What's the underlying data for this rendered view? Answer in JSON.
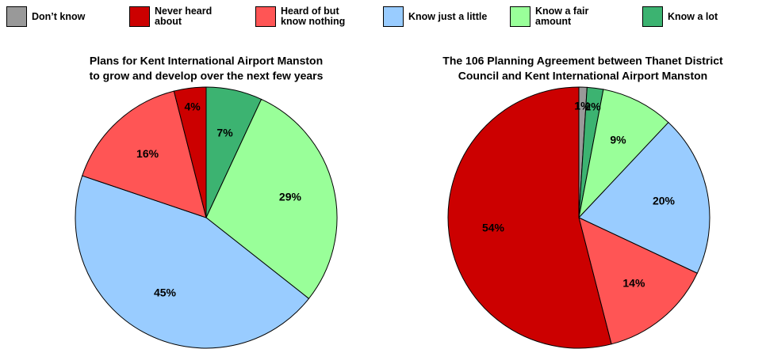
{
  "legend": [
    {
      "name": "Don’t know",
      "color": "#999999"
    },
    {
      "name": "Never heard about",
      "color": "#cc0000"
    },
    {
      "name": "Heard of but know nothing",
      "color": "#ff5555"
    },
    {
      "name": "Know just a little",
      "color": "#99ccff"
    },
    {
      "name": "Know a fair amount",
      "color": "#99ff99"
    },
    {
      "name": "Know a lot",
      "color": "#3cb371"
    }
  ],
  "chart_data": [
    {
      "type": "pie",
      "title": [
        "Plans for Kent International Airport Manston",
        "to grow and develop over the next few years"
      ],
      "categories": [
        "Know a lot",
        "Know a fair amount",
        "Know just a little",
        "Heard of but know nothing",
        "Never heard about"
      ],
      "values": [
        7,
        29,
        45,
        16,
        4
      ],
      "value_labels": [
        "7%",
        "29%",
        "45%",
        "16%",
        "4%"
      ]
    },
    {
      "type": "pie",
      "title": [
        "The 106 Planning Agreement between Thanet District",
        "Council and Kent International Airport Manston"
      ],
      "categories": [
        "Don’t know",
        "Know a lot",
        "Know a fair amount",
        "Know just a little",
        "Heard of but know nothing",
        "Never heard about"
      ],
      "values": [
        1,
        2,
        9,
        20,
        14,
        54
      ],
      "value_labels": [
        "1%",
        "2%",
        "9%",
        "20%",
        "14%",
        "54%"
      ]
    }
  ]
}
